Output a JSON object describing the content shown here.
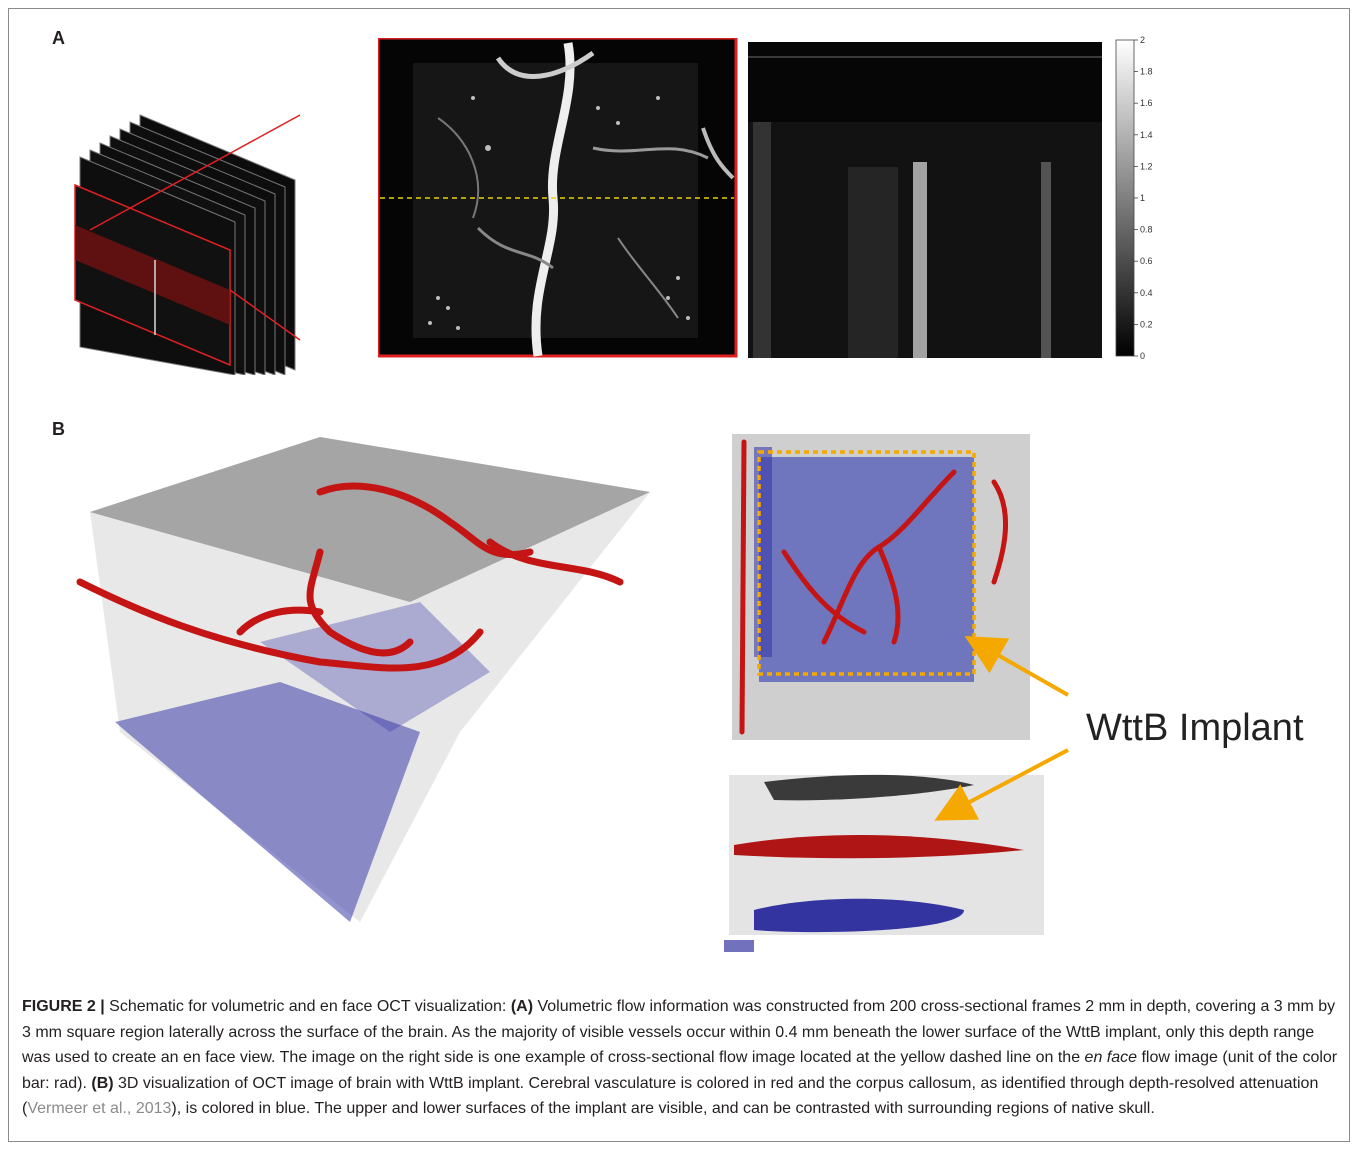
{
  "panels": {
    "a_letter": "A",
    "b_letter": "B"
  },
  "colorbar": {
    "ticks": [
      "2",
      "1.8",
      "1.6",
      "1.4",
      "1.2",
      "1",
      "0.8",
      "0.6",
      "0.4",
      "0.2",
      "0"
    ]
  },
  "annotation": {
    "implant_label": "WttB Implant"
  },
  "colors": {
    "highlight_red": "#e02020",
    "dashed_line_yellow": "#e8d400",
    "implant_box_orange": "#f5a800",
    "vessel_red": "#c41414",
    "callosum_blue": "#3a3aa8"
  },
  "caption": {
    "figure_label": "FIGURE 2 |",
    "part1": " Schematic for volumetric and en face OCT visualization: ",
    "a_ref": "(A)",
    "part2": " Volumetric flow information was constructed from 200 cross-sectional frames 2 mm in depth, covering a 3 mm by 3 mm square region laterally across the surface of the brain. As the majority of visible vessels occur within 0.4 mm beneath the lower surface of the WttB implant, only this depth range was used to create an en face view. The image on the right side is one example of cross-sectional flow image located at the yellow dashed line on the ",
    "italic": "en face",
    "part3": " flow image (unit of the color bar: rad). ",
    "b_ref": "(B)",
    "part4": " 3D visualization of OCT image of brain with WttB implant. Cerebral vasculature is colored in red and the corpus callosum, as identified through depth-resolved attenuation (",
    "citation": "Vermeer et al., 2013",
    "part5": "), is colored in blue. The upper and lower surfaces of the implant are visible, and can be contrasted with surrounding regions of native skull."
  }
}
